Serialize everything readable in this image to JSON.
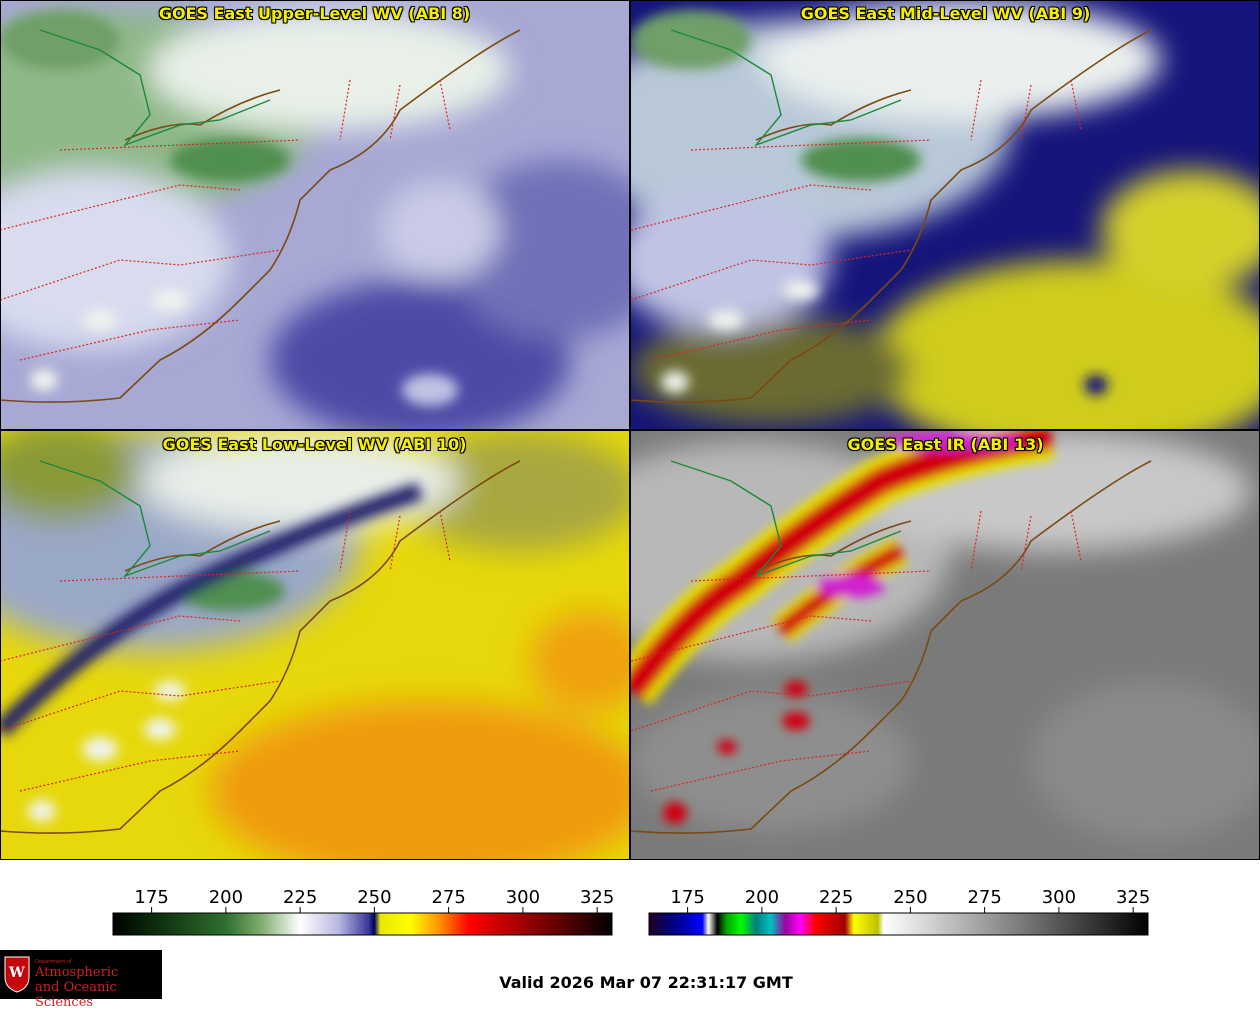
{
  "panels": [
    {
      "title": "GOES East Upper-Level WV (ABI 8)",
      "palette": "wv"
    },
    {
      "title": "GOES East Mid-Level WV (ABI 9)",
      "palette": "wv"
    },
    {
      "title": "GOES East Low-Level WV (ABI 10)",
      "palette": "wv"
    },
    {
      "title": "GOES East IR (ABI 13)",
      "palette": "ir"
    }
  ],
  "colorbars": [
    {
      "name": "wv",
      "ticks": [
        "175",
        "200",
        "225",
        "250",
        "275",
        "300",
        "325"
      ],
      "range": [
        162,
        330
      ],
      "stops": [
        [
          162,
          "#000000"
        ],
        [
          175,
          "#0a2a0a"
        ],
        [
          200,
          "#2f6f2f"
        ],
        [
          212,
          "#7fae6f"
        ],
        [
          225,
          "#ffffff"
        ],
        [
          238,
          "#b8b8e0"
        ],
        [
          248,
          "#3a3a9a"
        ],
        [
          250,
          "#00005a"
        ],
        [
          252,
          "#e8e800"
        ],
        [
          262,
          "#ffff00"
        ],
        [
          272,
          "#ff9000"
        ],
        [
          282,
          "#ff0000"
        ],
        [
          300,
          "#a00000"
        ],
        [
          318,
          "#400000"
        ],
        [
          330,
          "#000000"
        ]
      ]
    },
    {
      "name": "ir",
      "ticks": [
        "175",
        "200",
        "225",
        "250",
        "275",
        "300",
        "325"
      ],
      "range": [
        162,
        330
      ],
      "stops": [
        [
          162,
          "#200020"
        ],
        [
          170,
          "#000080"
        ],
        [
          180,
          "#0000ff"
        ],
        [
          182,
          "#ffffff"
        ],
        [
          185,
          "#000000"
        ],
        [
          188,
          "#00a000"
        ],
        [
          193,
          "#00ff00"
        ],
        [
          198,
          "#008080"
        ],
        [
          203,
          "#00c0c0"
        ],
        [
          208,
          "#a000a0"
        ],
        [
          213,
          "#ff00ff"
        ],
        [
          218,
          "#ff0000"
        ],
        [
          228,
          "#a00000"
        ],
        [
          231,
          "#ffff00"
        ],
        [
          239,
          "#c0c000"
        ],
        [
          241,
          "#ffffff"
        ],
        [
          330,
          "#000000"
        ]
      ]
    }
  ],
  "logo": {
    "dept": "Department of",
    "line1": "Atmospheric",
    "line2": "and Oceanic Sciences",
    "letter": "W"
  },
  "valid_text": "Valid 2026 Mar 07 22:31:17 GMT",
  "colors": {
    "title": "#f4f000",
    "state_lines": "#dd2222",
    "coastline": "#7a4a10",
    "border": "#1a8a3a"
  }
}
